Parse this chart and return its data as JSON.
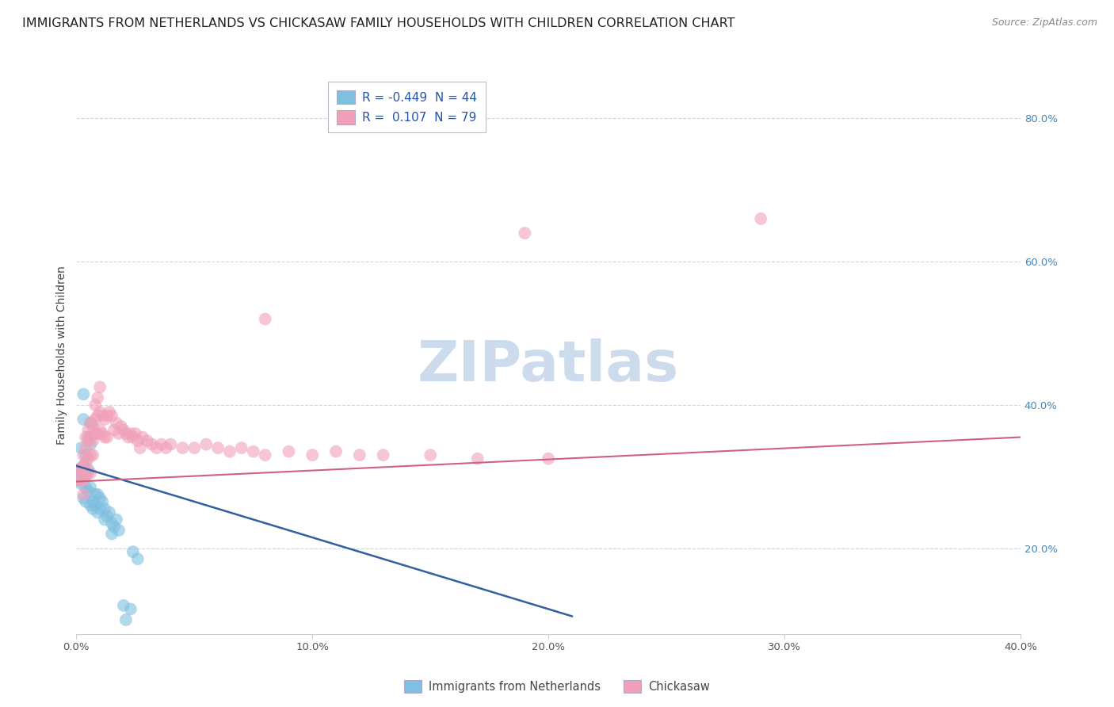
{
  "title": "IMMIGRANTS FROM NETHERLANDS VS CHICKASAW FAMILY HOUSEHOLDS WITH CHILDREN CORRELATION CHART",
  "source": "Source: ZipAtlas.com",
  "ylabel": "Family Households with Children",
  "x_tick_positions": [
    0.0,
    0.1,
    0.2,
    0.3,
    0.4
  ],
  "x_tick_labels": [
    "0.0%",
    "10.0%",
    "20.0%",
    "30.0%",
    "40.0%"
  ],
  "y_tick_positions": [
    0.2,
    0.4,
    0.6,
    0.8
  ],
  "y_tick_labels": [
    "20.0%",
    "40.0%",
    "60.0%",
    "80.0%"
  ],
  "x_min": 0.0,
  "x_max": 0.4,
  "y_min": 0.08,
  "y_max": 0.86,
  "legend_entries": [
    {
      "label": "R = -0.449  N = 44",
      "color": "#a8c8e8"
    },
    {
      "label": "R =  0.107  N = 79",
      "color": "#f4a8b8"
    }
  ],
  "legend_bottom": [
    {
      "label": "Immigrants from Netherlands",
      "color": "#a8c8e8"
    },
    {
      "label": "Chickasaw",
      "color": "#f4a8b8"
    }
  ],
  "blue_scatter": [
    [
      0.001,
      0.31
    ],
    [
      0.001,
      0.295
    ],
    [
      0.002,
      0.34
    ],
    [
      0.002,
      0.305
    ],
    [
      0.002,
      0.29
    ],
    [
      0.003,
      0.315
    ],
    [
      0.003,
      0.295
    ],
    [
      0.003,
      0.27
    ],
    [
      0.003,
      0.415
    ],
    [
      0.003,
      0.38
    ],
    [
      0.004,
      0.33
    ],
    [
      0.004,
      0.305
    ],
    [
      0.004,
      0.285
    ],
    [
      0.004,
      0.265
    ],
    [
      0.005,
      0.355
    ],
    [
      0.005,
      0.31
    ],
    [
      0.005,
      0.28
    ],
    [
      0.006,
      0.375
    ],
    [
      0.006,
      0.345
    ],
    [
      0.006,
      0.285
    ],
    [
      0.006,
      0.26
    ],
    [
      0.007,
      0.265
    ],
    [
      0.007,
      0.255
    ],
    [
      0.008,
      0.275
    ],
    [
      0.008,
      0.26
    ],
    [
      0.009,
      0.275
    ],
    [
      0.009,
      0.25
    ],
    [
      0.01,
      0.27
    ],
    [
      0.01,
      0.255
    ],
    [
      0.011,
      0.265
    ],
    [
      0.012,
      0.255
    ],
    [
      0.012,
      0.24
    ],
    [
      0.013,
      0.245
    ],
    [
      0.014,
      0.25
    ],
    [
      0.015,
      0.235
    ],
    [
      0.015,
      0.22
    ],
    [
      0.016,
      0.23
    ],
    [
      0.017,
      0.24
    ],
    [
      0.018,
      0.225
    ],
    [
      0.02,
      0.12
    ],
    [
      0.021,
      0.1
    ],
    [
      0.023,
      0.115
    ],
    [
      0.024,
      0.195
    ],
    [
      0.026,
      0.185
    ]
  ],
  "pink_scatter": [
    [
      0.001,
      0.31
    ],
    [
      0.001,
      0.295
    ],
    [
      0.002,
      0.31
    ],
    [
      0.002,
      0.295
    ],
    [
      0.002,
      0.31
    ],
    [
      0.003,
      0.33
    ],
    [
      0.003,
      0.315
    ],
    [
      0.003,
      0.295
    ],
    [
      0.003,
      0.275
    ],
    [
      0.004,
      0.355
    ],
    [
      0.004,
      0.34
    ],
    [
      0.004,
      0.32
    ],
    [
      0.004,
      0.3
    ],
    [
      0.005,
      0.365
    ],
    [
      0.005,
      0.35
    ],
    [
      0.005,
      0.325
    ],
    [
      0.005,
      0.305
    ],
    [
      0.006,
      0.375
    ],
    [
      0.006,
      0.355
    ],
    [
      0.006,
      0.33
    ],
    [
      0.006,
      0.305
    ],
    [
      0.007,
      0.37
    ],
    [
      0.007,
      0.35
    ],
    [
      0.007,
      0.33
    ],
    [
      0.008,
      0.4
    ],
    [
      0.008,
      0.38
    ],
    [
      0.008,
      0.36
    ],
    [
      0.009,
      0.41
    ],
    [
      0.009,
      0.385
    ],
    [
      0.009,
      0.36
    ],
    [
      0.01,
      0.425
    ],
    [
      0.01,
      0.39
    ],
    [
      0.01,
      0.365
    ],
    [
      0.011,
      0.385
    ],
    [
      0.011,
      0.36
    ],
    [
      0.012,
      0.38
    ],
    [
      0.012,
      0.355
    ],
    [
      0.013,
      0.385
    ],
    [
      0.013,
      0.355
    ],
    [
      0.014,
      0.39
    ],
    [
      0.015,
      0.385
    ],
    [
      0.016,
      0.365
    ],
    [
      0.017,
      0.375
    ],
    [
      0.018,
      0.36
    ],
    [
      0.019,
      0.37
    ],
    [
      0.02,
      0.365
    ],
    [
      0.021,
      0.36
    ],
    [
      0.022,
      0.355
    ],
    [
      0.023,
      0.36
    ],
    [
      0.024,
      0.355
    ],
    [
      0.025,
      0.36
    ],
    [
      0.026,
      0.35
    ],
    [
      0.027,
      0.34
    ],
    [
      0.028,
      0.355
    ],
    [
      0.03,
      0.35
    ],
    [
      0.032,
      0.345
    ],
    [
      0.034,
      0.34
    ],
    [
      0.036,
      0.345
    ],
    [
      0.038,
      0.34
    ],
    [
      0.04,
      0.345
    ],
    [
      0.045,
      0.34
    ],
    [
      0.05,
      0.34
    ],
    [
      0.055,
      0.345
    ],
    [
      0.06,
      0.34
    ],
    [
      0.065,
      0.335
    ],
    [
      0.07,
      0.34
    ],
    [
      0.075,
      0.335
    ],
    [
      0.08,
      0.33
    ],
    [
      0.09,
      0.335
    ],
    [
      0.1,
      0.33
    ],
    [
      0.11,
      0.335
    ],
    [
      0.12,
      0.33
    ],
    [
      0.13,
      0.33
    ],
    [
      0.15,
      0.33
    ],
    [
      0.17,
      0.325
    ],
    [
      0.2,
      0.325
    ],
    [
      0.08,
      0.52
    ],
    [
      0.19,
      0.64
    ],
    [
      0.29,
      0.66
    ]
  ],
  "blue_line": {
    "x": [
      0.0,
      0.21
    ],
    "y": [
      0.315,
      0.105
    ]
  },
  "pink_line": {
    "x": [
      0.0,
      0.4
    ],
    "y": [
      0.293,
      0.355
    ]
  },
  "blue_color": "#7fbfdf",
  "pink_color": "#f0a0b8",
  "blue_line_color": "#3060a0",
  "pink_line_color": "#d06080",
  "watermark": "ZIPatlas",
  "watermark_color": "#ccdcec",
  "background_color": "#ffffff",
  "grid_color": "#c8d4e0",
  "title_fontsize": 11.5,
  "source_fontsize": 9,
  "tick_fontsize": 9.5,
  "label_fontsize": 10
}
